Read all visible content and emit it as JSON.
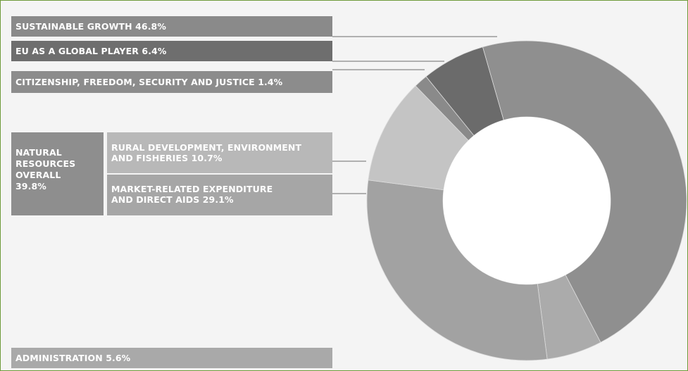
{
  "chart_data": {
    "type": "pie",
    "donut": true,
    "slices": [
      {
        "label": "SUSTAINABLE GROWTH 46.8%",
        "value": 46.8,
        "color": "#8f8f8f"
      },
      {
        "label": "ADMINISTRATION 5.6%",
        "value": 5.6,
        "color": "#ababab"
      },
      {
        "label": "MARKET-RELATED EXPENDITURE AND DIRECT AIDS 29.1%",
        "value": 29.1,
        "color": "#a2a2a2"
      },
      {
        "label": "RURAL DEVELOPMENT, ENVIRONMENT AND FISHERIES 10.7%",
        "value": 10.7,
        "color": "#c4c4c4"
      },
      {
        "label": "CITIZENSHIP, FREEDOM, SECURITY AND JUSTICE 1.4%",
        "value": 1.4,
        "color": "#8a8a8a"
      },
      {
        "label": "EU AS A GLOBAL PLAYER 6.4%",
        "value": 6.4,
        "color": "#6b6b6b"
      }
    ],
    "group": {
      "label": "NATURAL RESOURCES OVERALL 39.8%",
      "value": 39.8
    }
  },
  "labels": {
    "sustainable": "SUSTAINABLE GROWTH 46.8%",
    "global": "EU AS A GLOBAL PLAYER 6.4%",
    "citizenship": "CITIZENSHIP, FREEDOM, SECURITY AND JUSTICE 1.4%",
    "natural_lines": [
      "NATURAL",
      "RESOURCES",
      "OVERALL",
      "39.8%"
    ],
    "rural_lines": [
      "RURAL DEVELOPMENT, ENVIRONMENT",
      "AND FISHERIES 10.7%"
    ],
    "market_lines": [
      "MARKET-RELATED EXPENDITURE",
      "AND DIRECT AIDS 29.1%"
    ],
    "administration": "ADMINISTRATION 5.6%"
  },
  "colors": {
    "frame_border": "#6f9a3a",
    "background": "#f4f4f4",
    "bar_sustainable": "#8a8a8a",
    "bar_global": "#6e6e6e",
    "bar_citizenship": "#8c8c8c",
    "bar_natural": "#8e8e8e",
    "bar_rural": "#b8b8b8",
    "bar_market": "#a6a6a6",
    "bar_admin": "#a9a9a9",
    "leader": "#9a9a9a"
  }
}
